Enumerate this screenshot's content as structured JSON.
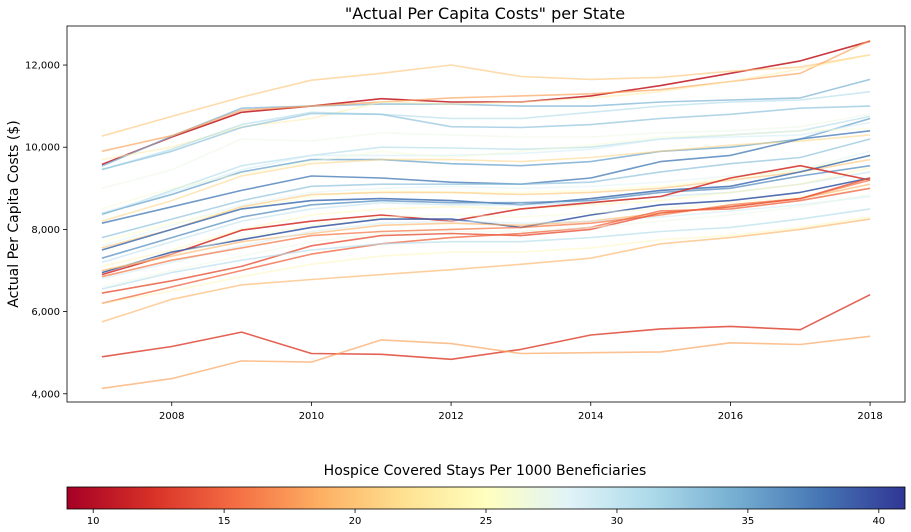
{
  "chart_data": {
    "type": "line",
    "title": "\"Actual Per Capita Costs\" per State",
    "xlabel": "",
    "ylabel": "Actual Per Capita Costs ($)",
    "xlim": [
      2006.5,
      2018.5
    ],
    "ylim": [
      3800,
      12950
    ],
    "xticks": [
      2008,
      2010,
      2012,
      2014,
      2016,
      2018
    ],
    "xtick_labels": [
      "2008",
      "2010",
      "2012",
      "2014",
      "2016",
      "2018"
    ],
    "yticks": [
      4000,
      6000,
      8000,
      10000,
      12000
    ],
    "ytick_labels": [
      "4,000",
      "6,000",
      "8,000",
      "10,000",
      "12,000"
    ],
    "grid": false,
    "x": [
      2007,
      2008,
      2009,
      2010,
      2011,
      2012,
      2013,
      2014,
      2015,
      2016,
      2017,
      2018
    ],
    "colorbar": {
      "title": "Hospice Covered Stays Per 1000 Beneficiaries",
      "range": [
        9,
        41
      ],
      "ticks": [
        10,
        15,
        20,
        25,
        30,
        35,
        40
      ],
      "tick_labels": [
        "10",
        "15",
        "20",
        "25",
        "30",
        "35",
        "40"
      ],
      "colormap": "RdYlBu",
      "colors": [
        "#a50026",
        "#d73027",
        "#f46d43",
        "#fdae61",
        "#fee090",
        "#ffffbf",
        "#e0f3f8",
        "#abd9e9",
        "#74add1",
        "#4575b4",
        "#313695"
      ]
    },
    "series": [
      {
        "c": 11,
        "values": [
          9580,
          10250,
          10850,
          11000,
          11180,
          11100,
          11100,
          11250,
          11500,
          11800,
          12100,
          12580
        ]
      },
      {
        "c": 34,
        "values": [
          9540,
          10270,
          10950,
          11000,
          11050,
          11050,
          11000,
          11000,
          11100,
          11150,
          11200,
          11650
        ]
      },
      {
        "c": 20,
        "values": [
          10270,
          10750,
          11220,
          11630,
          11800,
          12000,
          11720,
          11650,
          11700,
          11850,
          11950,
          12250
        ]
      },
      {
        "c": 18,
        "values": [
          9900,
          10280,
          10900,
          11000,
          11100,
          11200,
          11250,
          11300,
          11400,
          11600,
          11800,
          12600
        ]
      },
      {
        "c": 23,
        "values": [
          9700,
          10000,
          10500,
          10700,
          11100,
          11050,
          11100,
          11200,
          11350,
          11600,
          11900,
          12250
        ]
      },
      {
        "c": 31,
        "values": [
          9450,
          9950,
          10550,
          10850,
          10800,
          10700,
          10700,
          10850,
          11000,
          11100,
          11150,
          11350
        ]
      },
      {
        "c": 33,
        "values": [
          9460,
          9900,
          10480,
          10820,
          10800,
          10500,
          10480,
          10550,
          10700,
          10800,
          10950,
          11000
        ]
      },
      {
        "c": 27,
        "values": [
          9000,
          9450,
          10200,
          10150,
          10350,
          10300,
          10250,
          10250,
          10350,
          10400,
          10500,
          10800
        ]
      },
      {
        "c": 31,
        "values": [
          8350,
          8950,
          9550,
          9800,
          10000,
          9980,
          9950,
          10000,
          10200,
          10300,
          10400,
          10750
        ]
      },
      {
        "c": 35,
        "values": [
          8380,
          8850,
          9400,
          9700,
          9700,
          9600,
          9550,
          9650,
          9900,
          10000,
          10200,
          10700
        ]
      },
      {
        "c": 29,
        "values": [
          8400,
          8900,
          9450,
          9800,
          9800,
          9800,
          9850,
          9950,
          10200,
          10250,
          10300,
          10600
        ]
      },
      {
        "c": 26,
        "values": [
          8500,
          9000,
          9350,
          9650,
          9900,
          9750,
          9900,
          10050,
          10250,
          10300,
          10400,
          10450
        ]
      },
      {
        "c": 21,
        "values": [
          8200,
          8700,
          9300,
          9600,
          9700,
          9700,
          9650,
          9750,
          9900,
          10050,
          10150,
          10300
        ]
      },
      {
        "c": 37,
        "values": [
          8150,
          8550,
          8950,
          9300,
          9250,
          9150,
          9100,
          9250,
          9650,
          9800,
          10200,
          10400
        ]
      },
      {
        "c": 33,
        "values": [
          7800,
          8250,
          8700,
          9050,
          9100,
          9100,
          9100,
          9150,
          9400,
          9600,
          9750,
          10200
        ]
      },
      {
        "c": 28,
        "values": [
          7600,
          8100,
          8600,
          8900,
          9000,
          9050,
          9000,
          9050,
          9150,
          9300,
          9450,
          9900
        ]
      },
      {
        "c": 25,
        "values": [
          7700,
          8150,
          8500,
          8800,
          8950,
          8900,
          8900,
          8950,
          9050,
          9250,
          9450,
          9800
        ]
      },
      {
        "c": 20,
        "values": [
          7550,
          8000,
          8550,
          8850,
          8900,
          8900,
          8850,
          8900,
          9000,
          9200,
          9400,
          9700
        ]
      },
      {
        "c": 38,
        "values": [
          7500,
          8000,
          8500,
          8700,
          8750,
          8700,
          8600,
          8750,
          8950,
          9050,
          9400,
          9800
        ]
      },
      {
        "c": 36,
        "values": [
          7300,
          7800,
          8300,
          8600,
          8700,
          8650,
          8650,
          8700,
          8900,
          9000,
          9300,
          9550
        ]
      },
      {
        "c": 30,
        "values": [
          7200,
          7700,
          8200,
          8500,
          8650,
          8600,
          8600,
          8650,
          8800,
          8900,
          9100,
          9400
        ]
      },
      {
        "c": 24,
        "values": [
          7100,
          7500,
          8000,
          8350,
          8500,
          8550,
          8500,
          8600,
          8700,
          8900,
          9100,
          9500
        ]
      },
      {
        "c": 12,
        "values": [
          6900,
          7400,
          7980,
          8200,
          8350,
          8200,
          8500,
          8650,
          8800,
          9250,
          9550,
          9200
        ]
      },
      {
        "c": 39,
        "values": [
          6950,
          7450,
          7750,
          8050,
          8250,
          8250,
          8050,
          8350,
          8600,
          8700,
          8900,
          9250
        ]
      },
      {
        "c": 26,
        "values": [
          7000,
          7400,
          7800,
          8100,
          8300,
          8350,
          8300,
          8400,
          8500,
          8650,
          8800,
          9000
        ]
      },
      {
        "c": 19,
        "values": [
          7000,
          7350,
          7700,
          7900,
          8100,
          8150,
          8100,
          8200,
          8400,
          8550,
          8750,
          9100
        ]
      },
      {
        "c": 29,
        "values": [
          6800,
          7200,
          7600,
          7950,
          8150,
          8200,
          8150,
          8200,
          8300,
          8450,
          8600,
          8800
        ]
      },
      {
        "c": 16,
        "values": [
          6850,
          7250,
          7550,
          7850,
          7950,
          8000,
          8050,
          8150,
          8350,
          8600,
          8750,
          9200
        ]
      },
      {
        "c": 14,
        "values": [
          6450,
          6750,
          7100,
          7600,
          7850,
          7900,
          7850,
          8000,
          8400,
          8550,
          8750,
          9250
        ]
      },
      {
        "c": 15,
        "values": [
          6200,
          6600,
          7000,
          7400,
          7650,
          7800,
          7900,
          8050,
          8450,
          8500,
          8700,
          9000
        ]
      },
      {
        "c": 27,
        "values": [
          6600,
          7000,
          7350,
          7700,
          7900,
          7950,
          7950,
          8050,
          8200,
          8350,
          8550,
          8850
        ]
      },
      {
        "c": 31,
        "values": [
          6550,
          6950,
          7250,
          7500,
          7650,
          7700,
          7700,
          7800,
          7950,
          8050,
          8250,
          8500
        ]
      },
      {
        "c": 24,
        "values": [
          6200,
          6500,
          6850,
          7150,
          7350,
          7450,
          7450,
          7550,
          7750,
          7850,
          8050,
          8300
        ]
      },
      {
        "c": 19,
        "values": [
          5750,
          6300,
          6650,
          6780,
          6900,
          7020,
          7150,
          7300,
          7650,
          7800,
          8000,
          8250
        ]
      },
      {
        "c": 13,
        "values": [
          4900,
          5150,
          5500,
          4980,
          4960,
          4840,
          5080,
          5430,
          5580,
          5640,
          5560,
          6410
        ]
      },
      {
        "c": 18,
        "values": [
          4130,
          4370,
          4800,
          4770,
          5310,
          5220,
          4980,
          5000,
          5020,
          5240,
          5200,
          5400
        ]
      }
    ]
  }
}
